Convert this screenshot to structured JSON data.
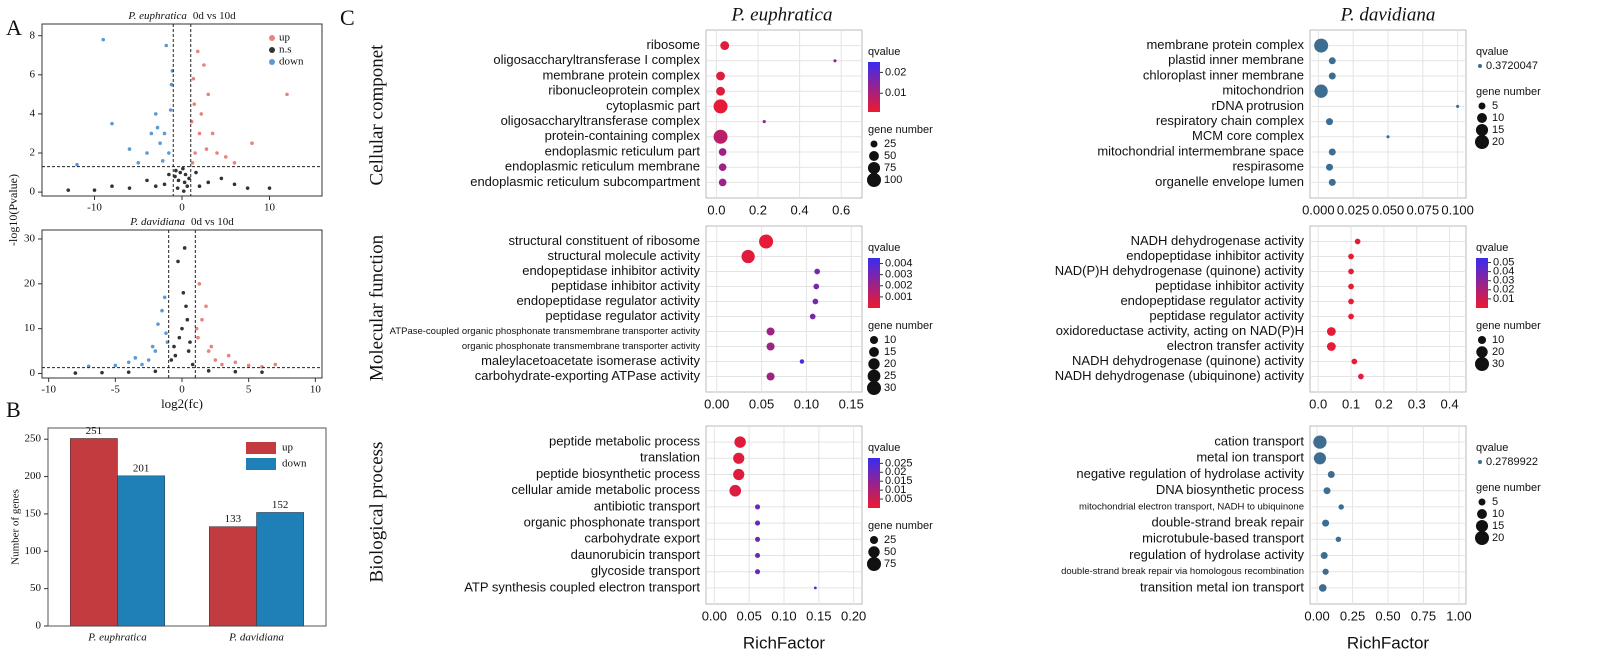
{
  "panel_labels": [
    "A",
    "B",
    "C"
  ],
  "row_titles": [
    "Cellular componet",
    "Molecular function",
    "Biological process"
  ],
  "column_titles": [
    "P. euphratica",
    "P. davidiana"
  ],
  "chart_data": [
    {
      "type": "scatter",
      "species": "P. euphratica",
      "comparison": "0d vs 10d",
      "ylabel": "-log10(Pvalue)",
      "xlim": [
        -16,
        16
      ],
      "xticks": [
        -10,
        0,
        10
      ],
      "ylim": [
        -0.2,
        8.6
      ],
      "yticks": [
        0,
        2,
        4,
        6,
        8
      ],
      "vlines": [
        -1,
        1
      ],
      "hline": 1.3,
      "legend": "upper right",
      "series": [
        {
          "name": "up",
          "color": "#e8837c",
          "x": [
            1.5,
            2,
            3,
            1.2,
            2.5,
            4,
            5,
            1.8,
            3.5,
            8,
            12,
            2.2,
            6,
            1.4,
            2.8,
            1.1,
            1.3
          ],
          "y": [
            2,
            3,
            5,
            1.5,
            6.5,
            2,
            1.8,
            7.2,
            3,
            2.5,
            5,
            4,
            1.5,
            4.5,
            2.2,
            3.6,
            5.8
          ]
        },
        {
          "name": "n.s",
          "color": "#333333",
          "x": [
            -0.5,
            0.3,
            -0.2,
            0.6,
            -0.8,
            0.1,
            -3,
            3,
            -6,
            6,
            -10,
            10,
            -13,
            0.4,
            -0.4,
            2,
            -2,
            0.8,
            -0.7,
            0.2,
            -1.5,
            1.6,
            -4,
            4.5,
            -8,
            7.5
          ],
          "y": [
            0.2,
            0.5,
            1,
            0.3,
            0.8,
            1.2,
            0.3,
            0.5,
            0.2,
            0.4,
            0.1,
            0.2,
            0.1,
            0.9,
            0.6,
            0.3,
            0.4,
            0.7,
            1.1,
            0.05,
            0.9,
            1,
            0.6,
            0.7,
            0.3,
            0.2
          ]
        },
        {
          "name": "down",
          "color": "#5b9bd5",
          "x": [
            -1.5,
            -2,
            -3,
            -5,
            -8,
            -1.2,
            -2.5,
            -4,
            -1.8,
            -12,
            -3.5,
            -6,
            -1.3,
            -2.2,
            -9,
            -1.1,
            -2.8
          ],
          "y": [
            2,
            3,
            4,
            1.5,
            3.5,
            5.5,
            2.5,
            2,
            7.5,
            1.4,
            3,
            2.2,
            4.2,
            1.6,
            7.8,
            6.2,
            3.3
          ]
        }
      ]
    },
    {
      "type": "scatter",
      "species": "P. davidiana",
      "comparison": "0d vs 10d",
      "xlabel": "log2(fc)",
      "xlim": [
        -10.5,
        10.5
      ],
      "xticks": [
        -10,
        -5,
        0,
        5,
        10
      ],
      "ylim": [
        -1,
        32
      ],
      "yticks": [
        0,
        10,
        20,
        30
      ],
      "vlines": [
        -1,
        1
      ],
      "hline": 1.3,
      "series": [
        {
          "name": "up",
          "color": "#e8837c",
          "x": [
            1.2,
            1.5,
            2,
            2.5,
            3,
            1.8,
            4,
            5,
            1.3,
            2.2,
            6,
            3.5,
            1.1,
            7
          ],
          "y": [
            8,
            12,
            5,
            3,
            2,
            15,
            2.5,
            1.8,
            20,
            6,
            1.5,
            4,
            10,
            2
          ]
        },
        {
          "name": "n.s",
          "color": "#333333",
          "x": [
            0.2,
            -0.3,
            0,
            0.5,
            -0.5,
            0.3,
            -0.2,
            0.8,
            -0.8,
            0.1,
            -2,
            2,
            -4,
            4,
            -6,
            6,
            -8,
            0.6,
            -0.6,
            0.4
          ],
          "y": [
            28,
            25,
            10,
            5,
            4,
            15,
            8,
            2,
            3,
            18,
            0.5,
            0.6,
            0.3,
            0.4,
            0.2,
            0.3,
            0.1,
            7,
            6,
            12
          ]
        },
        {
          "name": "down",
          "color": "#5b9bd5",
          "x": [
            -1.2,
            -1.5,
            -2,
            -2.5,
            -3,
            -1.8,
            -4,
            -5,
            -1.3,
            -2.2,
            -7,
            -1.1,
            -3.5
          ],
          "y": [
            9,
            14,
            5,
            3,
            2,
            11,
            2.5,
            1.8,
            17,
            6,
            1.6,
            7,
            3.5
          ]
        }
      ]
    },
    {
      "type": "bar",
      "ylabel": "Number of genes",
      "categories": [
        "P. euphratica",
        "P. davidiana"
      ],
      "ylim": [
        0,
        265
      ],
      "yticks": [
        0,
        50,
        100,
        150,
        200,
        250
      ],
      "legend": "upper right",
      "series": [
        {
          "name": "up",
          "color": "#c23b3f",
          "values": [
            251,
            133
          ]
        },
        {
          "name": "down",
          "color": "#1f80b8",
          "values": [
            201,
            152
          ]
        }
      ]
    },
    {
      "type": "dot",
      "legend_titles": [
        "qvalue",
        "gene number"
      ],
      "categories": [
        "ribosome",
        "oligosaccharyltransferase I complex",
        "membrane protein complex",
        "ribonucleoprotein complex",
        "cytoplasmic part",
        "oligosaccharyltransferase complex",
        "protein-containing complex",
        "endoplasmic reticulum part",
        "endoplasmic reticulum membrane",
        "endoplasmic reticulum subcompartment"
      ],
      "values": [
        0.04,
        0.57,
        0.02,
        0.02,
        0.02,
        0.23,
        0.02,
        0.03,
        0.03,
        0.03
      ],
      "sizes": [
        40,
        5,
        40,
        40,
        100,
        5,
        100,
        30,
        30,
        30
      ],
      "qvalues": [
        0.003,
        0.012,
        0.003,
        0.003,
        0.002,
        0.014,
        0.008,
        0.012,
        0.012,
        0.012
      ],
      "xlim": [
        -0.05,
        0.7
      ],
      "xticks": [
        {
          "value": 0,
          "label": "0.0"
        },
        0.2,
        0.4,
        0.6
      ],
      "qcolors": [
        "#ee1a2e",
        "#3a2cf0"
      ],
      "qlim": [
        0.001,
        0.025
      ],
      "qticks": [
        0.01,
        0.02
      ],
      "sizeticks": [
        25,
        50,
        75,
        100
      ]
    },
    {
      "type": "dot",
      "legend_titles": [
        "qvalue",
        "gene number"
      ],
      "categories": [
        "structural constituent of ribosome",
        "structural molecule activity",
        "endopeptidase inhibitor activity",
        "peptidase inhibitor activity",
        "endopeptidase regulator activity",
        "peptidase regulator activity",
        "ATPase-coupled organic phosphonate transmembrane transporter activity",
        "organic phosphonate transmembrane transporter activity",
        "maleylacetoacetate isomerase activity",
        "carbohydrate-exporting ATPase activity"
      ],
      "values": [
        0.055,
        0.035,
        0.112,
        0.111,
        0.11,
        0.107,
        0.06,
        0.06,
        0.095,
        0.06
      ],
      "sizes": [
        30,
        27,
        5,
        5,
        5,
        5,
        10,
        10,
        3,
        10
      ],
      "qvalues": [
        0.0002,
        0.0003,
        0.003,
        0.003,
        0.003,
        0.003,
        0.002,
        0.002,
        0.004,
        0.002
      ],
      "xlim": [
        -0.012,
        0.162
      ],
      "xticks": [
        {
          "value": 0,
          "label": "0.00"
        },
        0.05,
        {
          "value": 0.1,
          "label": "0.10"
        },
        0.15
      ],
      "qcolors": [
        "#ee1a2e",
        "#3a2cf0"
      ],
      "qlim": [
        0,
        0.0045
      ],
      "qticks": [
        0.001,
        0.002,
        0.003,
        0.004
      ],
      "sizeticks": [
        10,
        15,
        20,
        25,
        30
      ]
    },
    {
      "type": "dot",
      "legend_titles": [
        "qvalue",
        "gene number"
      ],
      "xlabel": "RichFactor",
      "categories": [
        "peptide metabolic process",
        "translation",
        "peptide biosynthetic process",
        "cellular amide metabolic process",
        "antibiotic transport",
        "organic phosphonate transport",
        "carbohydrate export",
        "daunorubicin transport",
        "glycoside transport",
        "ATP synthesis coupled electron transport"
      ],
      "values": [
        0.037,
        0.035,
        0.035,
        0.03,
        0.062,
        0.062,
        0.062,
        0.062,
        0.062,
        0.145
      ],
      "sizes": [
        50,
        48,
        48,
        52,
        10,
        10,
        10,
        10,
        10,
        3
      ],
      "qvalues": [
        0.002,
        0.002,
        0.002,
        0.003,
        0.02,
        0.02,
        0.02,
        0.02,
        0.02,
        0.025
      ],
      "xlim": [
        -0.012,
        0.212
      ],
      "xticks": [
        {
          "value": 0,
          "label": "0.00"
        },
        0.05,
        {
          "value": 0.1,
          "label": "0.10"
        },
        0.15,
        {
          "value": 0.2,
          "label": "0.20"
        }
      ],
      "qcolors": [
        "#ee1a2e",
        "#3a2cf0"
      ],
      "qlim": [
        0,
        0.028
      ],
      "qticks": [
        0.005,
        0.01,
        0.015,
        0.02,
        0.025
      ],
      "sizeticks": [
        25,
        50,
        75
      ]
    },
    {
      "type": "dot",
      "legend_titles": [
        "qvalue",
        "gene number"
      ],
      "categories": [
        "membrane protein complex",
        "plastid inner membrane",
        "chloroplast inner membrane",
        "mitochondrion",
        "rDNA protrusion",
        "respiratory chain complex",
        "MCM core complex",
        "mitochondrial intermembrane space",
        "respirasome",
        "organelle envelope lumen"
      ],
      "values": [
        0.002,
        0.01,
        0.01,
        0.002,
        0.1,
        0.008,
        0.05,
        0.01,
        0.008,
        0.01
      ],
      "sizes": [
        20,
        5,
        5,
        18,
        1,
        5,
        1,
        5,
        5,
        5
      ],
      "qvalues": [
        0.3720047,
        0.3720047,
        0.3720047,
        0.3720047,
        0.3720047,
        0.3720047,
        0.3720047,
        0.3720047,
        0.3720047,
        0.3720047
      ],
      "xlim": [
        -0.006,
        0.106
      ],
      "xticks": [
        {
          "value": 0,
          "label": "0.000"
        },
        0.025,
        {
          "value": 0.05,
          "label": "0.050"
        },
        0.075,
        {
          "value": 0.1,
          "label": "0.100"
        }
      ],
      "color": "#3d6e91",
      "qticks": [
        0.3720047
      ],
      "sizeticks": [
        5,
        10,
        15,
        20
      ]
    },
    {
      "type": "dot",
      "legend_titles": [
        "qvalue",
        "gene number"
      ],
      "categories": [
        "NADH dehydrogenase activity",
        "endopeptidase inhibitor activity",
        "NAD(P)H dehydrogenase (quinone) activity",
        "peptidase inhibitor activity",
        "endopeptidase regulator activity",
        "peptidase regulator activity",
        "oxidoreductase activity, acting on NAD(P)H",
        "electron transfer activity",
        "NADH dehydrogenase (quinone) activity",
        "NADH dehydrogenase (ubiquinone) activity"
      ],
      "values": [
        0.12,
        0.1,
        0.1,
        0.1,
        0.1,
        0.1,
        0.04,
        0.04,
        0.11,
        0.13
      ],
      "sizes": [
        5,
        5,
        5,
        5,
        5,
        5,
        12,
        12,
        5,
        5
      ],
      "qvalues": [
        0.003,
        0.002,
        0.003,
        0.002,
        0.002,
        0.002,
        0.002,
        0.002,
        0.003,
        0.003
      ],
      "xlim": [
        -0.025,
        0.45
      ],
      "xticks": [
        {
          "value": 0,
          "label": "0.0"
        },
        0.1,
        0.2,
        0.3,
        0.4
      ],
      "qcolors": [
        "#ee1a2e",
        "#3a2cf0"
      ],
      "qlim": [
        0,
        0.055
      ],
      "qticks": [
        0.01,
        0.02,
        0.03,
        0.04,
        0.05
      ],
      "sizeticks": [
        10,
        20,
        30
      ]
    },
    {
      "type": "dot",
      "legend_titles": [
        "qvalue",
        "gene number"
      ],
      "xlabel": "RichFactor",
      "categories": [
        "cation transport",
        "metal ion transport",
        "negative regulation of hydrolase activity",
        "DNA biosynthetic process",
        "mitochondrial electron transport, NADH to ubiquinone",
        "double-strand break repair",
        "microtubule-based transport",
        "regulation of hydrolase activity",
        "double-strand break repair via homologous recombination",
        "transition metal ion transport"
      ],
      "values": [
        0.02,
        0.02,
        0.1,
        0.07,
        0.17,
        0.06,
        0.15,
        0.05,
        0.06,
        0.04
      ],
      "sizes": [
        18,
        15,
        5,
        5,
        3,
        5,
        3,
        5,
        4,
        6
      ],
      "qvalues": [
        0.2789922,
        0.2789922,
        0.2789922,
        0.2789922,
        0.2789922,
        0.2789922,
        0.2789922,
        0.2789922,
        0.2789922,
        0.2789922
      ],
      "xlim": [
        -0.05,
        1.05
      ],
      "xticks": [
        {
          "value": 0,
          "label": "0.00"
        },
        0.25,
        {
          "value": 0.5,
          "label": "0.50"
        },
        0.75,
        {
          "value": 1,
          "label": "1.00"
        }
      ],
      "color": "#3d6e91",
      "qticks": [
        0.2789922
      ],
      "sizeticks": [
        5,
        10,
        15,
        20
      ]
    }
  ]
}
